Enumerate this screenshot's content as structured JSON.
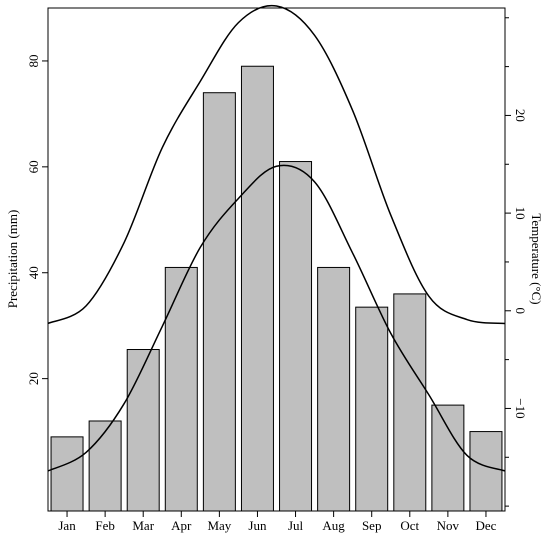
{
  "chart_data": {
    "type": "bar",
    "title": "",
    "xlabel": "",
    "ylabel": "Precipitation (mm)",
    "y2label": "Temperature (°C)",
    "categories": [
      "Jan",
      "Feb",
      "Mar",
      "Apr",
      "May",
      "Jun",
      "Jul",
      "Aug",
      "Sep",
      "Oct",
      "Nov",
      "Dec"
    ],
    "ylim": [
      -5,
      90
    ],
    "yticks": [
      20,
      40,
      60,
      80
    ],
    "y2lim": [
      -20.5,
      31
    ],
    "y2ticks": [
      -10,
      0,
      10,
      20
    ],
    "grid": false,
    "legend": "none",
    "bar_color": "#bfbfbf",
    "series": [
      {
        "type": "bar",
        "axis": "left",
        "values": [
          9,
          12,
          25.5,
          41,
          74,
          79,
          61,
          41,
          33.5,
          36,
          15,
          10
        ]
      },
      {
        "type": "line",
        "axis": "right",
        "x": [
          -0.5,
          0.5,
          1.5,
          2.5,
          3.5,
          4.5,
          5.5,
          6.5,
          7.5,
          8.5,
          9.5,
          10.5,
          11.5
        ],
        "values": [
          -16.4,
          -14.5,
          -9.5,
          -1.6,
          6.5,
          11.5,
          14.8,
          13.2,
          5.9,
          -2.3,
          -8.6,
          -14.8,
          -16.4
        ]
      },
      {
        "type": "line",
        "axis": "right",
        "x": [
          -0.5,
          0.5,
          1.5,
          2.5,
          3.5,
          4.5,
          5.5,
          6.5,
          7.5,
          8.5,
          9.5,
          10.5,
          11.5
        ],
        "values": [
          -1.3,
          0.5,
          7,
          16.7,
          23.5,
          29.5,
          31.2,
          28.2,
          20.5,
          9.8,
          1.5,
          -0.9,
          -1.3
        ]
      }
    ]
  }
}
